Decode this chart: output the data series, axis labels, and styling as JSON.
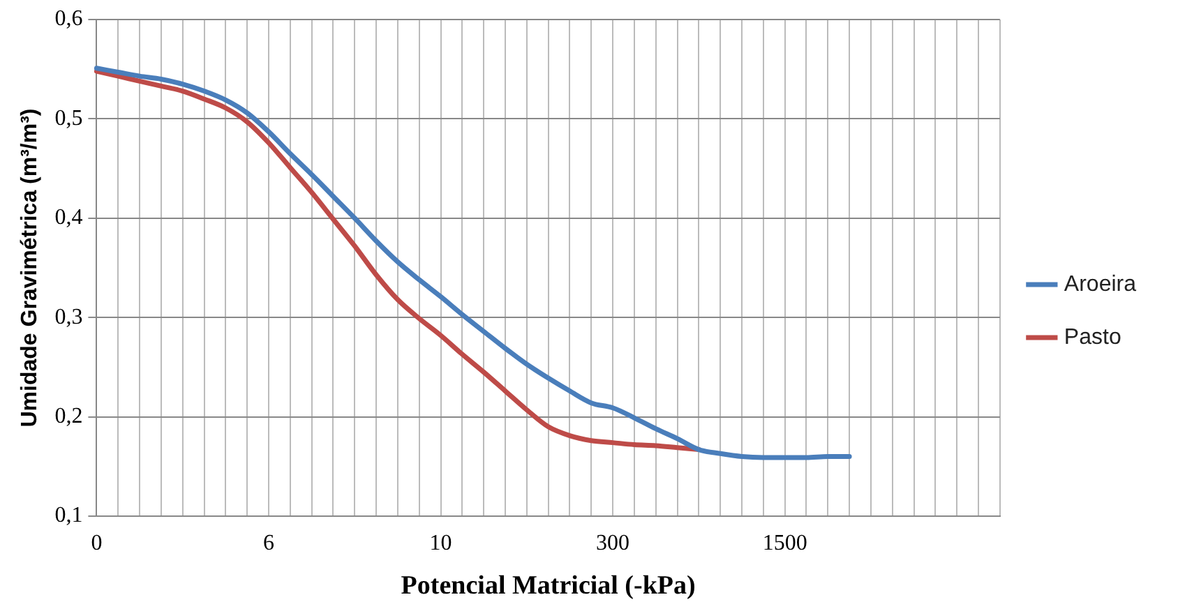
{
  "chart_data": {
    "type": "line",
    "xlabel": "Potencial Matricial (-kPa)",
    "ylabel": "Umidade Gravimétrica (m³/m³)",
    "categories": [
      "0",
      null,
      null,
      null,
      null,
      null,
      null,
      null,
      "6",
      null,
      null,
      null,
      null,
      null,
      null,
      null,
      "10",
      null,
      null,
      null,
      null,
      null,
      null,
      null,
      "300",
      null,
      null,
      null,
      null,
      null,
      null,
      null,
      "1500",
      null,
      null,
      null,
      null,
      null,
      null,
      null,
      null,
      null,
      null
    ],
    "series": [
      {
        "name": "Aroeira",
        "color": "#4a7ebb",
        "values": [
          0.551,
          0.547,
          0.543,
          0.54,
          0.535,
          0.528,
          0.519,
          0.506,
          0.487,
          0.465,
          0.444,
          0.422,
          0.4,
          0.377,
          0.356,
          0.338,
          0.321,
          0.303,
          0.286,
          0.269,
          0.253,
          0.239,
          0.226,
          0.214,
          0.209,
          0.199,
          0.188,
          0.178,
          0.167,
          0.163,
          0.16,
          0.159,
          0.159,
          0.159,
          0.16,
          0.16,
          null,
          null,
          null,
          null,
          null,
          null,
          null
        ]
      },
      {
        "name": "Pasto",
        "color": "#be4b48",
        "values": [
          0.548,
          0.543,
          0.538,
          0.533,
          0.528,
          0.52,
          0.511,
          0.497,
          0.476,
          0.451,
          0.426,
          0.399,
          0.372,
          0.343,
          0.318,
          0.299,
          0.282,
          0.263,
          0.245,
          0.226,
          0.207,
          0.19,
          0.181,
          0.176,
          0.174,
          0.172,
          0.171,
          0.169,
          0.167,
          null,
          null,
          null,
          null,
          null,
          null,
          null,
          null,
          null,
          null,
          null,
          null,
          null,
          null
        ]
      }
    ],
    "ylim": [
      0.1,
      0.6
    ],
    "yticks": [
      {
        "value": 0.1,
        "label": "0,1"
      },
      {
        "value": 0.2,
        "label": "0,2"
      },
      {
        "value": 0.3,
        "label": "0,3"
      },
      {
        "value": 0.4,
        "label": "0,4"
      },
      {
        "value": 0.5,
        "label": "0,5"
      },
      {
        "value": 0.6,
        "label": "0,6"
      }
    ],
    "grid": true,
    "legend": "right"
  }
}
